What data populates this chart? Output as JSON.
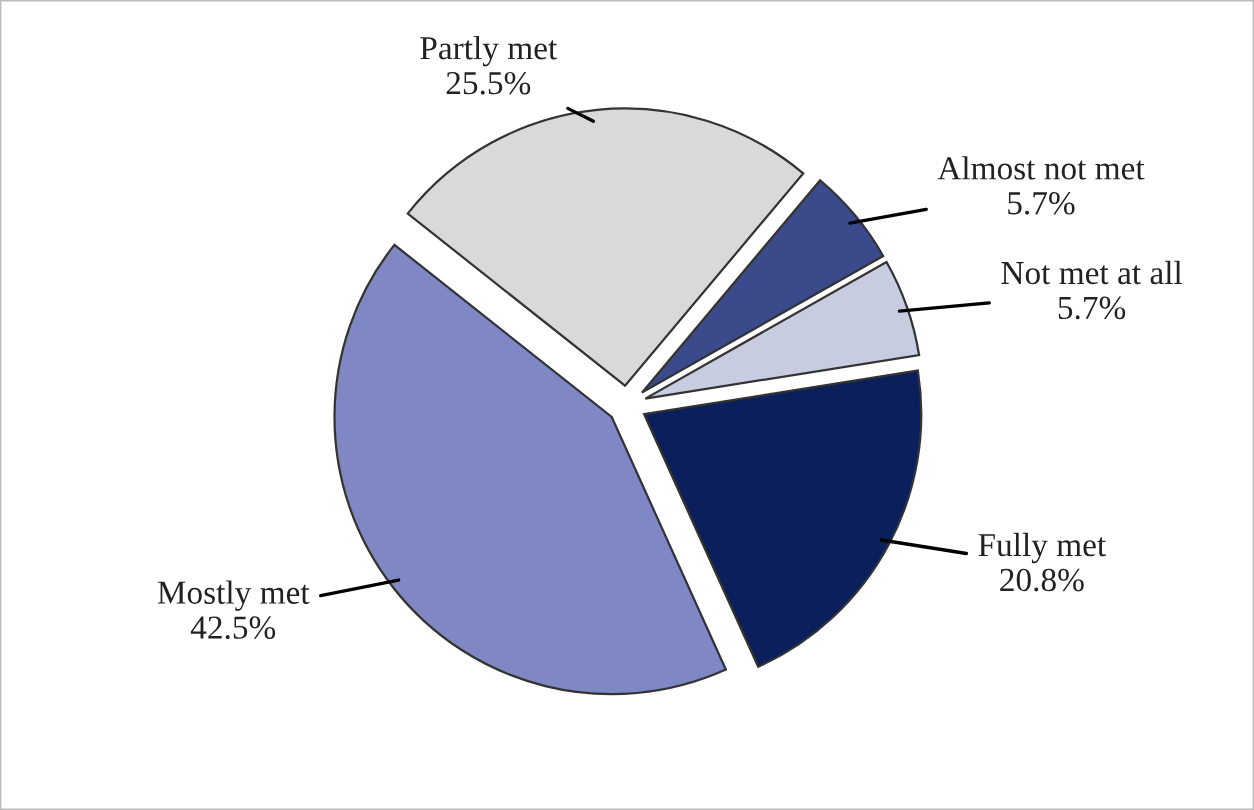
{
  "chart_data": {
    "type": "pie",
    "categories": [
      "Almost not met",
      "Not met at all",
      "Fully met",
      "Mostly met",
      "Partly met"
    ],
    "values": [
      5.7,
      5.7,
      20.8,
      42.5,
      25.5
    ],
    "colors": [
      "#3a4a8a",
      "#c8cce0",
      "#0b1f5c",
      "#7f88c4",
      "#d9d9d9"
    ],
    "value_labels": [
      "5.7%",
      "5.7%",
      "20.8%",
      "42.5%",
      "25.5%"
    ],
    "legend": false
  }
}
